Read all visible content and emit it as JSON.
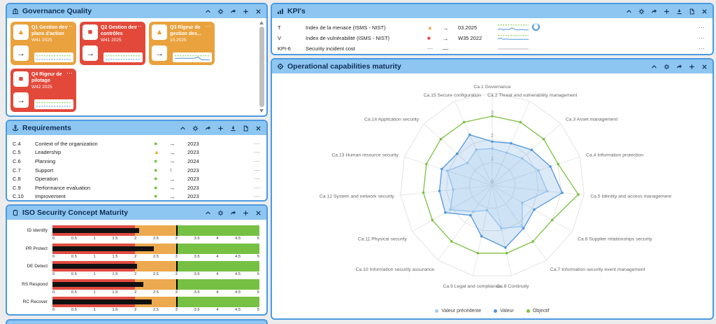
{
  "ui": {
    "menu_glyph": "⋯"
  },
  "governance": {
    "title": "Governance Quality",
    "card_arrow": "→",
    "cards": [
      {
        "title": "Q1 Gestion des plans d'action",
        "period": "W41 2025",
        "status": "warning",
        "color": "orange"
      },
      {
        "title": "Q2 Gestion des contrôles",
        "period": "W41 2025",
        "status": "alert",
        "color": "red"
      },
      {
        "title": "Q3 Rigeur de gestion des...",
        "period": "10.2025",
        "status": "warning",
        "color": "orange"
      },
      {
        "title": "Q4 Rigeur de pilotage",
        "period": "W42 2025",
        "status": "alert",
        "color": "red"
      }
    ]
  },
  "requirements": {
    "title": "Requirements",
    "rows": [
      {
        "id": "C.4",
        "label": "Context of the organization",
        "status": "ok",
        "trend": "→",
        "year": "2023"
      },
      {
        "id": "C.5",
        "label": "Leadership",
        "status": "warning",
        "trend": "→",
        "year": "2023"
      },
      {
        "id": "C.6",
        "label": "Planning",
        "status": "ok",
        "trend": "→",
        "year": "2024"
      },
      {
        "id": "C.7",
        "label": "Support",
        "status": "ok",
        "trend": "↑",
        "year": "2023"
      },
      {
        "id": "C.8",
        "label": "Operation",
        "status": "ok",
        "trend": "→",
        "year": "2023"
      },
      {
        "id": "C.9",
        "label": "Performance evaluation",
        "status": "ok",
        "trend": "→",
        "year": "2023"
      },
      {
        "id": "C.10",
        "label": "Improvement",
        "status": "ok",
        "trend": "→",
        "year": "2023"
      }
    ]
  },
  "iso": {
    "title": "ISO Security Concept Maturity"
  },
  "kpis": {
    "title": "KPI's",
    "rows": [
      {
        "id": "T",
        "label": "Index de la menace (ISMS - NIST)",
        "status": "warning",
        "trend": "→",
        "period": "03.2025",
        "spark": "kpi_t",
        "spinner": true
      },
      {
        "id": "V",
        "label": "Index de vulnérabilité (ISMS - NIST)",
        "status": "alert",
        "trend": "→",
        "period": "W35 2022",
        "spark": "kpi_v",
        "spinner": false
      },
      {
        "id": "KPI-6",
        "label": "Security incident cost",
        "status": "none",
        "trend": "—",
        "period": "",
        "spark": "kpi_6",
        "spinner": false
      }
    ]
  },
  "operational": {
    "title": "Operational capabilities maturity"
  },
  "sparklines": {
    "card_default": {
      "lines": [
        {
          "color": "#7cc142",
          "dash": true,
          "values": [
            8,
            8,
            8,
            8,
            8,
            8,
            8,
            8,
            8,
            8
          ]
        },
        {
          "color": "#4f97dd",
          "dash": true,
          "values": [
            2.5,
            2.2,
            2.6,
            2.2,
            2.5,
            2.2,
            2.5,
            2.2,
            2.6,
            2.2
          ]
        }
      ]
    },
    "card_q3": {
      "lines": [
        {
          "color": "#7cc142",
          "dash": true,
          "values": [
            8,
            8,
            8,
            8,
            8,
            8,
            8,
            8,
            8,
            8
          ]
        },
        {
          "color": "#4f97dd",
          "dash": false,
          "values": [
            4,
            4,
            4.3,
            4,
            4,
            4.2,
            6,
            1.6,
            1.8,
            1.6
          ]
        }
      ]
    },
    "kpi_t": {
      "lines": [
        {
          "color": "#7cc142",
          "dash": true,
          "values": [
            8.5,
            8.5,
            8.5,
            8.5,
            8.5,
            8.5,
            8.5,
            8.5,
            8.5,
            8.5,
            8.5,
            8.5
          ]
        },
        {
          "color": "#4f97dd",
          "dash": false,
          "values": [
            3,
            4,
            2.5,
            3.6,
            3,
            5.2,
            3.6,
            2.6,
            3.2,
            3,
            2.6,
            3
          ]
        }
      ]
    },
    "kpi_v": {
      "lines": [
        {
          "color": "#7cc142",
          "dash": true,
          "values": [
            8.5,
            8.5,
            8.5,
            8.5,
            8.5,
            8.5,
            8.5,
            8.5,
            8.5,
            8.5,
            8.5,
            8.5
          ]
        },
        {
          "color": "#4f97dd",
          "dash": false,
          "values": [
            4.5,
            5.5,
            3.8,
            4.4,
            3.9,
            3.9,
            3.9,
            3.9,
            3.9,
            3.9,
            3.9,
            3.9
          ]
        }
      ]
    },
    "kpi_6": {
      "lines": [
        {
          "color": "#b9b9b9",
          "dash": false,
          "values": [
            5,
            5
          ]
        }
      ]
    }
  },
  "chart_data": [
    {
      "id": "iso-maturity",
      "type": "bar",
      "variant": "bullet",
      "title": "ISO Security Concept Maturity",
      "categories": [
        "ID Identify",
        "PR Protect",
        "DE Detect",
        "RS Respond",
        "RC Recover"
      ],
      "values": [
        2.1,
        2.45,
        2.05,
        2.2,
        2.4
      ],
      "target": 3,
      "xlim": [
        0,
        5
      ],
      "ticks": [
        "0",
        "0.5",
        "1",
        "1.5",
        "2",
        "2.5",
        "3",
        "3.5",
        "4",
        "4.5",
        "5"
      ],
      "zones": [
        {
          "from": 0,
          "to": 2,
          "color": "#e04b41"
        },
        {
          "from": 2,
          "to": 3,
          "color": "#eda94f"
        },
        {
          "from": 3,
          "to": 5,
          "color": "#76c043"
        }
      ],
      "bar_color": "#111111",
      "target_color": "#000000",
      "grid": false
    },
    {
      "id": "operational-maturity",
      "type": "radar",
      "title": "Operational capabilities maturity",
      "categories": [
        "Ca.1 Governance",
        "Ca.2 Threat and vulnerability management",
        "Ca.3 Asset management",
        "Ca.4 Information protection",
        "Ca.5 Identity and access management",
        "Ca.6 Supplier relationships security",
        "Ca.7 Information security event management",
        "Ca.8 Continuity",
        "Ca.9 Legal and compliance",
        "Ca.10 Information security assurance",
        "Ca.11 Physical security",
        "Ca.12 System and network security",
        "Ca.13 Human resource security",
        "Ca.14 Application security",
        "Ca.15 Secure configuration"
      ],
      "series": [
        {
          "name": "Valeur précédente",
          "color": "#a6cdf0",
          "fill": true,
          "values": [
            1.6,
            1.55,
            1.75,
            2.1,
            2.4,
            1.5,
            2.2,
            1.9,
            1.1,
            1.4,
            2.1,
            1.7,
            2.05,
            1.45,
            1.7
          ]
        },
        {
          "name": "Valeur",
          "color": "#4f97dd",
          "fill": true,
          "values": [
            1.9,
            2.0,
            2.3,
            2.65,
            3.05,
            2.1,
            2.3,
            2.75,
            2.25,
            1.6,
            2.35,
            2.3,
            2.3,
            2.05,
            2.4
          ]
        },
        {
          "name": "Objectif",
          "color": "#7cc142",
          "fill": false,
          "values": [
            3,
            3,
            3,
            3,
            3.75,
            3,
            3,
            3,
            3,
            3,
            3,
            3,
            3,
            3,
            3
          ]
        }
      ],
      "rmax": 4,
      "ring_labels": [
        "0",
        "1",
        "2",
        "3"
      ],
      "grid": true,
      "legend_position": "bottom"
    }
  ]
}
